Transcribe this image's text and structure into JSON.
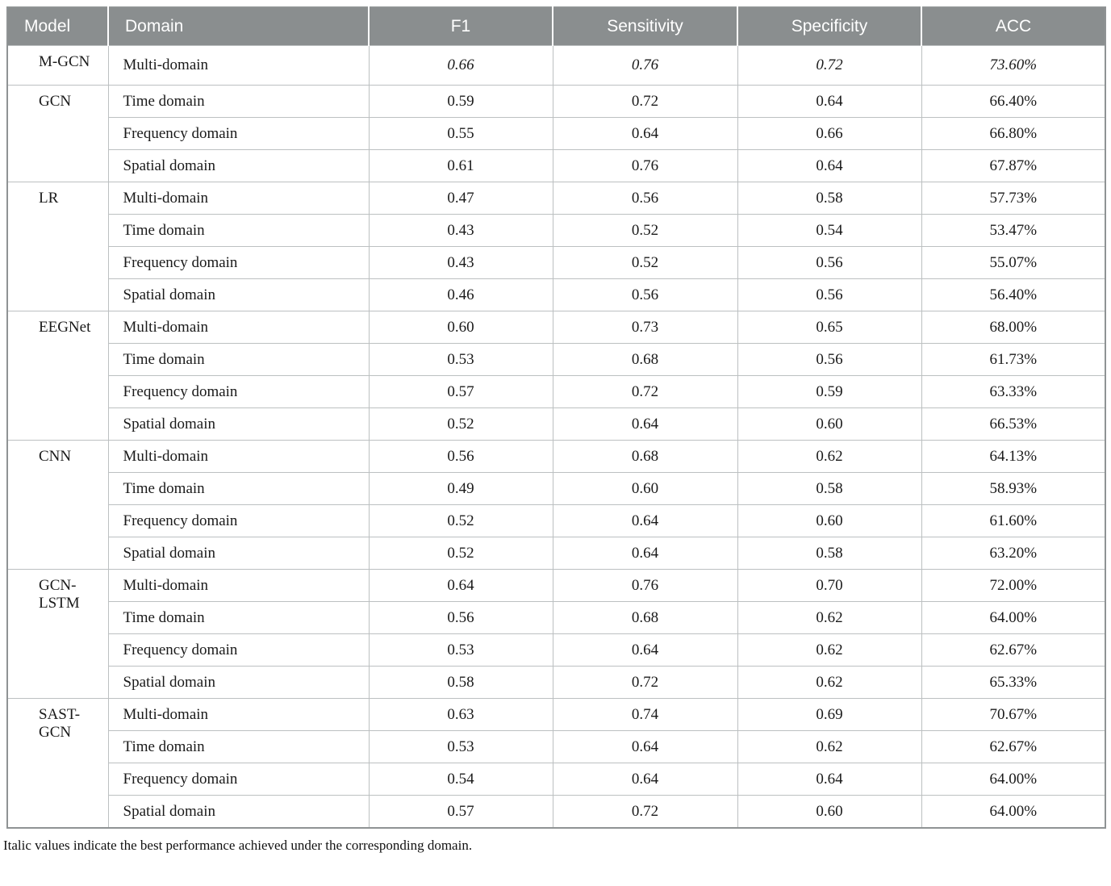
{
  "table": {
    "headers": [
      "Model",
      "Domain",
      "F1",
      "Sensitivity",
      "Specificity",
      "ACC"
    ],
    "columns_keys": [
      "f1",
      "sensitivity",
      "specificity",
      "acc"
    ],
    "groups": [
      {
        "model": "M-GCN",
        "rows": [
          {
            "domain": "Multi-domain",
            "f1": "0.66",
            "sensitivity": "0.76",
            "specificity": "0.72",
            "acc": "73.60%",
            "italic": true
          }
        ]
      },
      {
        "model": "GCN",
        "rows": [
          {
            "domain": "Time domain",
            "f1": "0.59",
            "sensitivity": "0.72",
            "specificity": "0.64",
            "acc": "66.40%",
            "italic": false
          },
          {
            "domain": "Frequency domain",
            "f1": "0.55",
            "sensitivity": "0.64",
            "specificity": "0.66",
            "acc": "66.80%",
            "italic": false
          },
          {
            "domain": "Spatial domain",
            "f1": "0.61",
            "sensitivity": "0.76",
            "specificity": "0.64",
            "acc": "67.87%",
            "italic": false
          }
        ]
      },
      {
        "model": "LR",
        "rows": [
          {
            "domain": "Multi-domain",
            "f1": "0.47",
            "sensitivity": "0.56",
            "specificity": "0.58",
            "acc": "57.73%",
            "italic": false
          },
          {
            "domain": "Time domain",
            "f1": "0.43",
            "sensitivity": "0.52",
            "specificity": "0.54",
            "acc": "53.47%",
            "italic": false
          },
          {
            "domain": "Frequency domain",
            "f1": "0.43",
            "sensitivity": "0.52",
            "specificity": "0.56",
            "acc": "55.07%",
            "italic": false
          },
          {
            "domain": "Spatial domain",
            "f1": "0.46",
            "sensitivity": "0.56",
            "specificity": "0.56",
            "acc": "56.40%",
            "italic": false
          }
        ]
      },
      {
        "model": "EEGNet",
        "rows": [
          {
            "domain": "Multi-domain",
            "f1": "0.60",
            "sensitivity": "0.73",
            "specificity": "0.65",
            "acc": "68.00%",
            "italic": false
          },
          {
            "domain": "Time domain",
            "f1": "0.53",
            "sensitivity": "0.68",
            "specificity": "0.56",
            "acc": "61.73%",
            "italic": false
          },
          {
            "domain": "Frequency domain",
            "f1": "0.57",
            "sensitivity": "0.72",
            "specificity": "0.59",
            "acc": "63.33%",
            "italic": false
          },
          {
            "domain": "Spatial domain",
            "f1": "0.52",
            "sensitivity": "0.64",
            "specificity": "0.60",
            "acc": "66.53%",
            "italic": false
          }
        ]
      },
      {
        "model": "CNN",
        "rows": [
          {
            "domain": "Multi-domain",
            "f1": "0.56",
            "sensitivity": "0.68",
            "specificity": "0.62",
            "acc": "64.13%",
            "italic": false
          },
          {
            "domain": "Time domain",
            "f1": "0.49",
            "sensitivity": "0.60",
            "specificity": "0.58",
            "acc": "58.93%",
            "italic": false
          },
          {
            "domain": "Frequency domain",
            "f1": "0.52",
            "sensitivity": "0.64",
            "specificity": "0.60",
            "acc": "61.60%",
            "italic": false
          },
          {
            "domain": "Spatial domain",
            "f1": "0.52",
            "sensitivity": "0.64",
            "specificity": "0.58",
            "acc": "63.20%",
            "italic": false
          }
        ]
      },
      {
        "model": "GCN-LSTM",
        "rows": [
          {
            "domain": "Multi-domain",
            "f1": "0.64",
            "sensitivity": "0.76",
            "specificity": "0.70",
            "acc": "72.00%",
            "italic": false
          },
          {
            "domain": "Time domain",
            "f1": "0.56",
            "sensitivity": "0.68",
            "specificity": "0.62",
            "acc": "64.00%",
            "italic": false
          },
          {
            "domain": "Frequency domain",
            "f1": "0.53",
            "sensitivity": "0.64",
            "specificity": "0.62",
            "acc": "62.67%",
            "italic": false
          },
          {
            "domain": "Spatial domain",
            "f1": "0.58",
            "sensitivity": "0.72",
            "specificity": "0.62",
            "acc": "65.33%",
            "italic": false
          }
        ]
      },
      {
        "model": "SAST-GCN",
        "rows": [
          {
            "domain": "Multi-domain",
            "f1": "0.63",
            "sensitivity": "0.74",
            "specificity": "0.69",
            "acc": "70.67%",
            "italic": false
          },
          {
            "domain": "Time domain",
            "f1": "0.53",
            "sensitivity": "0.64",
            "specificity": "0.62",
            "acc": "62.67%",
            "italic": false
          },
          {
            "domain": "Frequency domain",
            "f1": "0.54",
            "sensitivity": "0.64",
            "specificity": "0.64",
            "acc": "64.00%",
            "italic": false
          },
          {
            "domain": "Spatial domain",
            "f1": "0.57",
            "sensitivity": "0.72",
            "specificity": "0.60",
            "acc": "64.00%",
            "italic": false
          }
        ]
      }
    ],
    "footnote": "Italic values indicate the best performance achieved under the corresponding domain."
  },
  "colors": {
    "header_bg": "#8a8e8f",
    "header_text": "#ffffff",
    "border_inner": "#bcc0c1",
    "border_outer": "#8f9394",
    "body_text": "#1a1a1a"
  }
}
